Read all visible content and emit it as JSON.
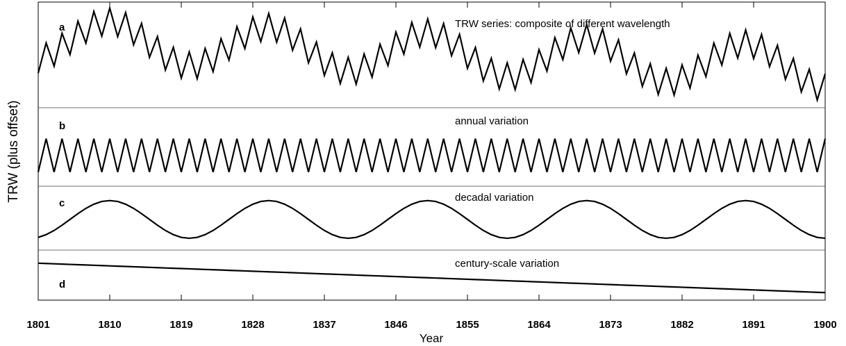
{
  "chart_data": {
    "type": "line",
    "x_label": "Year",
    "y_label": "TRW (plus offset)",
    "xlim": [
      1801,
      1900
    ],
    "xticks": [
      1801,
      1810,
      1819,
      1828,
      1837,
      1846,
      1855,
      1864,
      1873,
      1882,
      1891,
      1900
    ],
    "color": "#000000",
    "x": [
      1801,
      1802,
      1803,
      1804,
      1805,
      1806,
      1807,
      1808,
      1809,
      1810,
      1811,
      1812,
      1813,
      1814,
      1815,
      1816,
      1817,
      1818,
      1819,
      1820,
      1821,
      1822,
      1823,
      1824,
      1825,
      1826,
      1827,
      1828,
      1829,
      1830,
      1831,
      1832,
      1833,
      1834,
      1835,
      1836,
      1837,
      1838,
      1839,
      1840,
      1841,
      1842,
      1843,
      1844,
      1845,
      1846,
      1847,
      1848,
      1849,
      1850,
      1851,
      1852,
      1853,
      1854,
      1855,
      1856,
      1857,
      1858,
      1859,
      1860,
      1861,
      1862,
      1863,
      1864,
      1865,
      1866,
      1867,
      1868,
      1869,
      1870,
      1871,
      1872,
      1873,
      1874,
      1875,
      1876,
      1877,
      1878,
      1879,
      1880,
      1881,
      1882,
      1883,
      1884,
      1885,
      1886,
      1887,
      1888,
      1889,
      1890,
      1891,
      1892,
      1893,
      1894,
      1895,
      1896,
      1897,
      1898,
      1899,
      1900
    ],
    "series": [
      {
        "name": "TRW series: composite of different wavelength",
        "label": "a",
        "ylim": [
          -3.7,
          3.5
        ],
        "values": [
          -1.43,
          0.77,
          -0.92,
          1.48,
          -0.08,
          2.36,
          0.76,
          3.07,
          1.27,
          3.32,
          1.23,
          2.99,
          0.64,
          2.2,
          -0.28,
          1.24,
          -1.2,
          0.45,
          -1.79,
          0.12,
          -1.83,
          0.37,
          -1.32,
          1.08,
          -0.48,
          1.96,
          0.36,
          2.67,
          0.87,
          2.92,
          0.83,
          2.59,
          0.24,
          1.8,
          -0.68,
          0.84,
          -1.6,
          0.05,
          -2.19,
          -0.28,
          -2.23,
          -0.03,
          -1.72,
          0.68,
          -0.88,
          1.56,
          -0.04,
          2.27,
          0.47,
          2.52,
          0.43,
          2.19,
          -0.16,
          1.4,
          -1.08,
          0.44,
          -2.0,
          -0.35,
          -2.59,
          -0.68,
          -2.63,
          -0.43,
          -2.12,
          0.28,
          -1.28,
          1.16,
          -0.44,
          1.87,
          0.07,
          2.12,
          0.03,
          1.79,
          -0.56,
          1.0,
          -1.48,
          0.04,
          -2.4,
          -0.75,
          -2.99,
          -1.08,
          -3.03,
          -0.83,
          -2.52,
          -0.12,
          -1.68,
          0.76,
          -0.84,
          1.47,
          -0.33,
          1.72,
          -0.37,
          1.39,
          -0.96,
          0.6,
          -1.88,
          -0.36,
          -2.8,
          -1.15,
          -3.39,
          -1.48
        ]
      },
      {
        "name": "annual variation",
        "label": "b",
        "ylim": [
          -1.6,
          1.9
        ],
        "values": [
          -1,
          1,
          -1,
          1,
          -1,
          1,
          -1,
          1,
          -1,
          1,
          -1,
          1,
          -1,
          1,
          -1,
          1,
          -1,
          1,
          -1,
          1,
          -1,
          1,
          -1,
          1,
          -1,
          1,
          -1,
          1,
          -1,
          1,
          -1,
          1,
          -1,
          1,
          -1,
          1,
          -1,
          1,
          -1,
          1,
          -1,
          1,
          -1,
          1,
          -1,
          1,
          -1,
          1,
          -1,
          1,
          -1,
          1,
          -1,
          1,
          -1,
          1,
          -1,
          1,
          -1,
          1,
          -1,
          1,
          -1,
          1,
          -1,
          1,
          -1,
          1,
          -1,
          1,
          -1,
          1,
          -1,
          1,
          -1,
          1,
          -1,
          1,
          -1,
          1,
          -1,
          1,
          -1,
          1,
          -1,
          1,
          -1,
          1,
          -1,
          1,
          -1,
          1,
          -1,
          1,
          -1,
          1,
          -1,
          1,
          -1,
          1
        ]
      },
      {
        "name": "decadal variation",
        "label": "c",
        "ylim": [
          -2.0,
          2.2
        ],
        "values": [
          -1.43,
          -1.21,
          -0.88,
          -0.46,
          0,
          0.46,
          0.88,
          1.21,
          1.43,
          1.5,
          1.43,
          1.21,
          0.88,
          0.46,
          0,
          -0.46,
          -0.88,
          -1.21,
          -1.43,
          -1.5,
          -1.43,
          -1.21,
          -0.88,
          -0.46,
          0,
          0.46,
          0.88,
          1.21,
          1.43,
          1.5,
          1.43,
          1.21,
          0.88,
          0.46,
          0,
          -0.46,
          -0.88,
          -1.21,
          -1.43,
          -1.5,
          -1.43,
          -1.21,
          -0.88,
          -0.46,
          0,
          0.46,
          0.88,
          1.21,
          1.43,
          1.5,
          1.43,
          1.21,
          0.88,
          0.46,
          0,
          -0.46,
          -0.88,
          -1.21,
          -1.43,
          -1.5,
          -1.43,
          -1.21,
          -0.88,
          -0.46,
          0,
          0.46,
          0.88,
          1.21,
          1.43,
          1.5,
          1.43,
          1.21,
          0.88,
          0.46,
          0,
          -0.46,
          -0.88,
          -1.21,
          -1.43,
          -1.5,
          -1.43,
          -1.21,
          -0.88,
          -0.46,
          0,
          0.46,
          0.88,
          1.21,
          1.43,
          1.5,
          1.43,
          1.21,
          0.88,
          0.46,
          0,
          -0.46,
          -0.88,
          -1.21,
          -1.43,
          -1.5
        ]
      },
      {
        "name": "century-scale variation",
        "label": "d",
        "ylim": [
          -1.3,
          1.6
        ],
        "values": [
          1,
          0.98,
          0.96,
          0.94,
          0.92,
          0.9,
          0.88,
          0.86,
          0.84,
          0.82,
          0.8,
          0.78,
          0.76,
          0.74,
          0.72,
          0.7,
          0.68,
          0.66,
          0.64,
          0.62,
          0.6,
          0.58,
          0.56,
          0.54,
          0.52,
          0.5,
          0.48,
          0.46,
          0.44,
          0.42,
          0.4,
          0.38,
          0.36,
          0.34,
          0.32,
          0.3,
          0.28,
          0.26,
          0.24,
          0.22,
          0.2,
          0.18,
          0.16,
          0.14,
          0.12,
          0.1,
          0.08,
          0.06,
          0.04,
          0.02,
          0,
          -0.02,
          -0.04,
          -0.06,
          -0.08,
          -0.1,
          -0.12,
          -0.14,
          -0.16,
          -0.18,
          -0.2,
          -0.22,
          -0.24,
          -0.26,
          -0.28,
          -0.3,
          -0.32,
          -0.34,
          -0.36,
          -0.38,
          -0.4,
          -0.42,
          -0.44,
          -0.46,
          -0.48,
          -0.5,
          -0.52,
          -0.54,
          -0.56,
          -0.58,
          -0.6,
          -0.62,
          -0.64,
          -0.66,
          -0.68,
          -0.7,
          -0.72,
          -0.74,
          -0.76,
          -0.78,
          -0.8,
          -0.82,
          -0.84,
          -0.86,
          -0.88,
          -0.9,
          -0.92,
          -0.94,
          -0.96,
          -0.98
        ]
      }
    ]
  }
}
